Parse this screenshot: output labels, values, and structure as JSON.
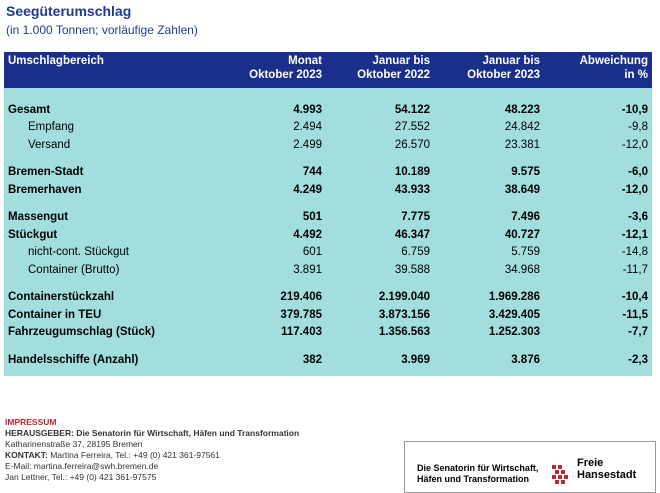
{
  "title": "Seegüterumschlag",
  "subtitle": "(in 1.000 Tonnen; vorläufige Zahlen)",
  "headers": {
    "col0": "Umschlagbereich",
    "col1_l1": "Monat",
    "col1_l2": "Oktober 2023",
    "col2_l1": "Januar bis",
    "col2_l2": "Oktober 2022",
    "col3_l1": "Januar bis",
    "col3_l2": "Oktober 2023",
    "col4_l1": "Abweichung",
    "col4_l2": "in %"
  },
  "rows": [
    {
      "label": "Gesamt",
      "m": "4.993",
      "j22": "54.122",
      "j23": "48.223",
      "d": "-10,9"
    },
    {
      "label": "Empfang",
      "m": "2.494",
      "j22": "27.552",
      "j23": "24.842",
      "d": "-9,8"
    },
    {
      "label": "Versand",
      "m": "2.499",
      "j22": "26.570",
      "j23": "23.381",
      "d": "-12,0"
    },
    {
      "label": "Bremen-Stadt",
      "m": "744",
      "j22": "10.189",
      "j23": "9.575",
      "d": "-6,0"
    },
    {
      "label": "Bremerhaven",
      "m": "4.249",
      "j22": "43.933",
      "j23": "38.649",
      "d": "-12,0"
    },
    {
      "label": "Massengut",
      "m": "501",
      "j22": "7.775",
      "j23": "7.496",
      "d": "-3,6"
    },
    {
      "label": "Stückgut",
      "m": "4.492",
      "j22": "46.347",
      "j23": "40.727",
      "d": "-12,1"
    },
    {
      "label": "nicht-cont. Stückgut",
      "m": "601",
      "j22": "6.759",
      "j23": "5.759",
      "d": "-14,8"
    },
    {
      "label": "Container (Brutto)",
      "m": "3.891",
      "j22": "39.588",
      "j23": "34.968",
      "d": "-11,7"
    },
    {
      "label": "Containerstückzahl",
      "m": "219.406",
      "j22": "2.199.040",
      "j23": "1.969.286",
      "d": "-10,4"
    },
    {
      "label": "Container in TEU",
      "m": "379.785",
      "j22": "3.873.156",
      "j23": "3.429.405",
      "d": "-11,5"
    },
    {
      "label": "Fahrzeugumschlag (Stück)",
      "m": "117.403",
      "j22": "1.356.563",
      "j23": "1.252.303",
      "d": "-7,7"
    },
    {
      "label": "Handelsschiffe (Anzahl)",
      "m": "382",
      "j22": "3.969",
      "j23": "3.876",
      "d": "-2,3"
    }
  ],
  "impressum": {
    "heading": "IMPRESSUM",
    "publisher": "HERAUSGEBER: Die Senatorin für Wirtschaft, Häfen und Transformation",
    "address": "Katharinenstraße 37, 28195 Bremen",
    "contact_label": "KONTAKT:",
    "contact": "Martina Ferreira, Tel.: +49 (0) 421 361-97561",
    "email": "E-Mail: martina.ferreira@swh.bremen.de",
    "extra": "Jan Lettner, Tel.: +49 (0) 421 361-97575"
  },
  "logo": {
    "line1": "Die Senatorin für Wirtschaft,",
    "line2": "Häfen und Transformation",
    "right1": "Freie",
    "right2": "Hansestadt"
  }
}
